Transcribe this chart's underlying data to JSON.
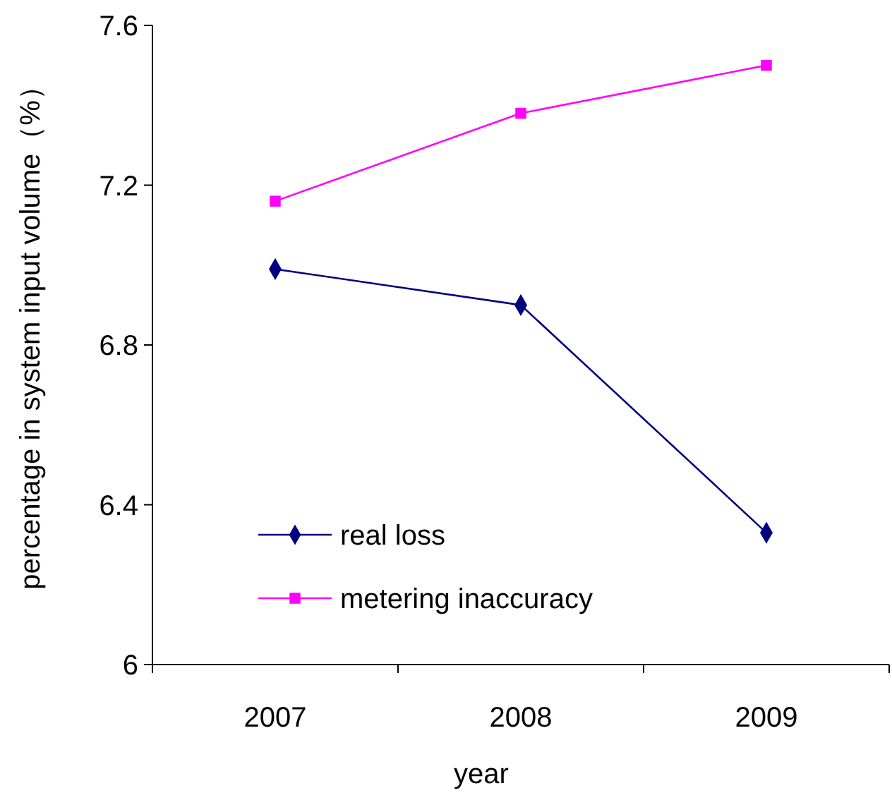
{
  "chart_data": {
    "type": "line",
    "xlabel": "year",
    "ylabel": "percentage in system input volume（%）",
    "categories": [
      "2007",
      "2008",
      "2009"
    ],
    "series": [
      {
        "name": "real loss",
        "color": "#000080",
        "marker": "diamond",
        "values": [
          6.99,
          6.9,
          6.33
        ]
      },
      {
        "name": "metering inaccuracy",
        "color": "#ff00ff",
        "marker": "square",
        "values": [
          7.16,
          7.38,
          7.5
        ]
      }
    ],
    "ylim": [
      6,
      7.6
    ],
    "yticks": [
      6,
      6.4,
      6.8,
      7.2,
      7.6
    ],
    "grid": false,
    "legend": "bottom left",
    "line_style": "solid"
  }
}
